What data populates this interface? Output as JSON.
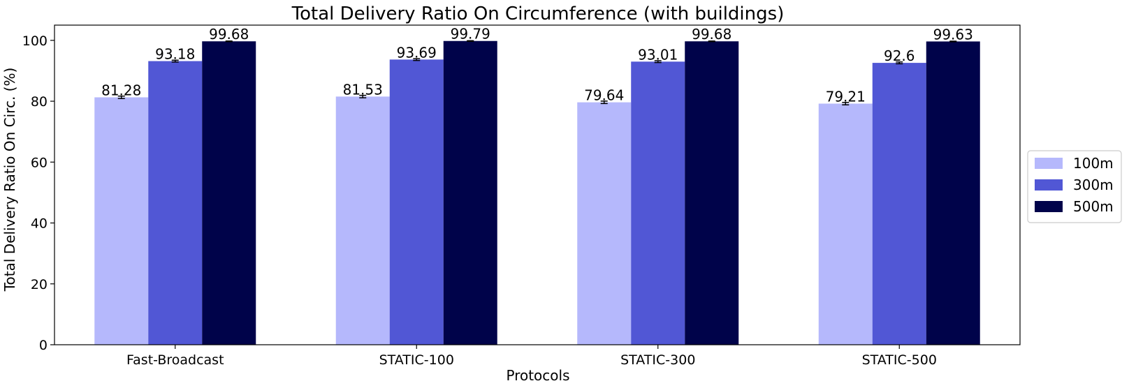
{
  "chart_data": {
    "type": "bar",
    "title": "Total Delivery Ratio On Circumference (with buildings)",
    "xlabel": "Protocols",
    "ylabel": "Total Delivery Ratio On Circ. (%)",
    "ylim": [
      0,
      105
    ],
    "yticks": [
      0,
      20,
      40,
      60,
      80,
      100
    ],
    "categories": [
      "Fast-Broadcast",
      "STATIC-100",
      "STATIC-300",
      "STATIC-500"
    ],
    "series": [
      {
        "name": "100m",
        "color": "#b5b8fc",
        "values": [
          81.28,
          81.53,
          79.64,
          79.21
        ],
        "errors": [
          0.4,
          0.4,
          0.4,
          0.4
        ],
        "labels": [
          "81.28",
          "81.53",
          "79.64",
          "79.21"
        ]
      },
      {
        "name": "300m",
        "color": "#5157d5",
        "values": [
          93.18,
          93.69,
          93.01,
          92.6
        ],
        "errors": [
          0.3,
          0.3,
          0.3,
          0.3
        ],
        "labels": [
          "93.18",
          "93.69",
          "93.01",
          "92.6"
        ]
      },
      {
        "name": "500m",
        "color": "#00034a",
        "values": [
          99.68,
          99.79,
          99.68,
          99.63
        ],
        "errors": [
          0.1,
          0.1,
          0.1,
          0.1
        ],
        "labels": [
          "99.68",
          "99.79",
          "99.68",
          "99.63"
        ]
      }
    ],
    "legend_position": "right",
    "grid": false
  }
}
